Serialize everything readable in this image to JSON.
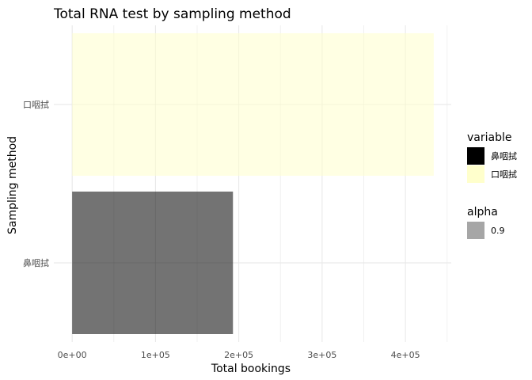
{
  "chart_data": {
    "type": "bar",
    "orientation": "horizontal",
    "title": "Total RNA test by sampling method",
    "xlabel": "Total bookings",
    "ylabel": "Sampling method",
    "categories": [
      "鼻咽拭",
      "口咽拭"
    ],
    "values": [
      193000,
      434000
    ],
    "bar_colors": [
      "#000000",
      "#FFFFCC"
    ],
    "bar_opacity": 0.55,
    "xlim": [
      -22000,
      455000
    ],
    "xticks": [
      0,
      100000,
      200000,
      300000,
      400000
    ],
    "xtick_labels": [
      "0e+00",
      "1e+05",
      "2e+05",
      "3e+05",
      "4e+05"
    ],
    "grid": true,
    "legend_position": "right",
    "legends": [
      {
        "title": "variable",
        "items": [
          {
            "label": "鼻咽拭",
            "color": "#000000"
          },
          {
            "label": "口咽拭",
            "color": "#FFFFCC"
          }
        ]
      },
      {
        "title": "alpha",
        "items": [
          {
            "label": "0.9",
            "color": "#A6A6A6"
          }
        ]
      }
    ]
  }
}
